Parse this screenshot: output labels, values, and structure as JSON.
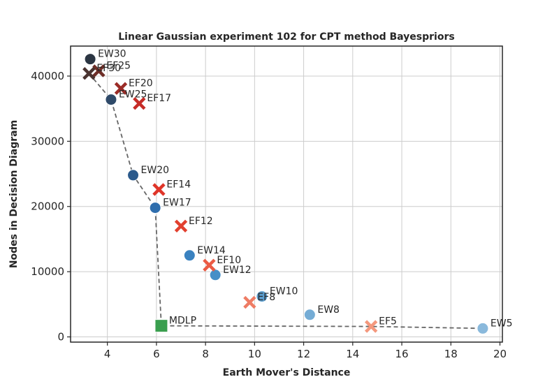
{
  "chart_data": {
    "type": "scatter",
    "title": "Linear Gaussian experiment 102 for CPT method Bayespriors",
    "xlabel": "Earth Mover's Distance",
    "ylabel": "Nodes in Decision Diagram",
    "xlim": [
      2.5,
      20.1
    ],
    "ylim": [
      -800,
      44600
    ],
    "xticks": [
      4,
      6,
      8,
      10,
      12,
      14,
      16,
      18,
      20
    ],
    "yticks": [
      0,
      10000,
      20000,
      30000,
      40000
    ],
    "grid": true,
    "series": [
      {
        "marker": "circle",
        "points": [
          {
            "label": "EW5",
            "x": 19.3,
            "y": 1300,
            "color": "#8ab9dc"
          },
          {
            "label": "EW8",
            "x": 12.25,
            "y": 3400,
            "color": "#75acd5"
          },
          {
            "label": "EW10",
            "x": 10.3,
            "y": 6200,
            "color": "#5b9ccc"
          },
          {
            "label": "EW12",
            "x": 8.4,
            "y": 9500,
            "color": "#468fc7"
          },
          {
            "label": "EW14",
            "x": 7.35,
            "y": 12500,
            "color": "#3a82c0"
          },
          {
            "label": "EW17",
            "x": 5.95,
            "y": 19800,
            "color": "#2f6ead"
          },
          {
            "label": "EW20",
            "x": 5.05,
            "y": 24800,
            "color": "#2b5a8c"
          },
          {
            "label": "EW25",
            "x": 4.15,
            "y": 36400,
            "color": "#2f4a69"
          },
          {
            "label": "EW30",
            "x": 3.3,
            "y": 42600,
            "color": "#2c3643"
          }
        ]
      },
      {
        "marker": "x",
        "points": [
          {
            "label": "EF5",
            "x": 14.75,
            "y": 1600,
            "color": "#f4987d"
          },
          {
            "label": "EF8",
            "x": 9.8,
            "y": 5300,
            "color": "#ee7c64"
          },
          {
            "label": "EF10",
            "x": 8.15,
            "y": 11000,
            "color": "#eb5b44"
          },
          {
            "label": "EF12",
            "x": 7.0,
            "y": 17000,
            "color": "#e2402f"
          },
          {
            "label": "EF14",
            "x": 6.1,
            "y": 22600,
            "color": "#df3428"
          },
          {
            "label": "EF17",
            "x": 5.3,
            "y": 35800,
            "color": "#c62c27"
          },
          {
            "label": "EF20",
            "x": 4.55,
            "y": 38100,
            "color": "#9b2c27"
          },
          {
            "label": "EF25",
            "x": 3.65,
            "y": 40800,
            "color": "#6e2e27"
          },
          {
            "label": "EF30",
            "x": 3.25,
            "y": 40400,
            "color": "#4a3330"
          }
        ]
      },
      {
        "marker": "square",
        "points": [
          {
            "label": "MDLP",
            "x": 6.2,
            "y": 1700,
            "color": "#3a9f4f"
          }
        ]
      }
    ],
    "frontier": {
      "style": "dashed",
      "color": "#666666",
      "points": [
        {
          "x": 3.25,
          "y": 40400
        },
        {
          "x": 4.15,
          "y": 36400
        },
        {
          "x": 5.05,
          "y": 24800
        },
        {
          "x": 5.95,
          "y": 19800
        },
        {
          "x": 6.2,
          "y": 1700
        },
        {
          "x": 14.75,
          "y": 1600
        },
        {
          "x": 19.3,
          "y": 1300
        }
      ]
    }
  }
}
